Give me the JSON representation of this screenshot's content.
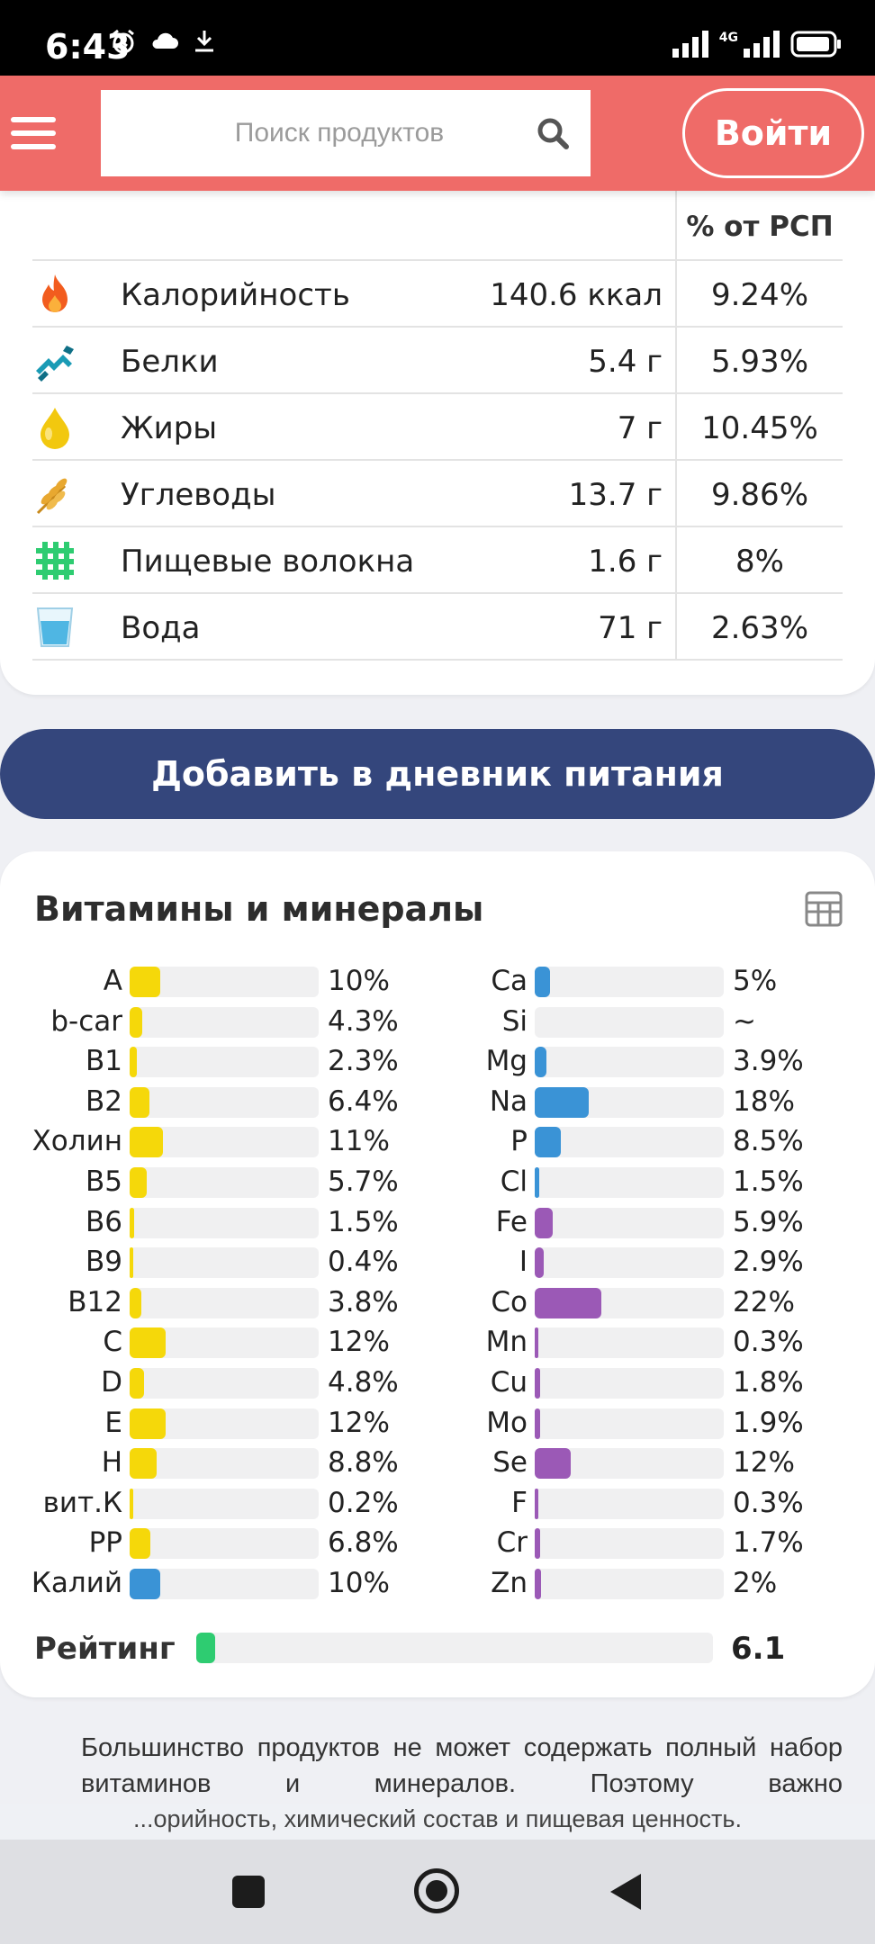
{
  "status_bar": {
    "time": "6:43",
    "network": "4G"
  },
  "header": {
    "search_placeholder": "Поиск продуктов",
    "login_label": "Войти",
    "accent_color": "#ef6b68"
  },
  "nutrition": {
    "pct_header": "% от РСП",
    "rows": [
      {
        "icon": "fire-icon",
        "name": "Калорийность",
        "amount": "140.6 ккал",
        "pct": "9.24%"
      },
      {
        "icon": "protein-icon",
        "name": "Белки",
        "amount": "5.4 г",
        "pct": "5.93%"
      },
      {
        "icon": "oil-drop-icon",
        "name": "Жиры",
        "amount": "7 г",
        "pct": "10.45%"
      },
      {
        "icon": "wheat-icon",
        "name": "Углеводы",
        "amount": "13.7 г",
        "pct": "9.86%"
      },
      {
        "icon": "fiber-icon",
        "name": "Пищевые волокна",
        "amount": "1.6 г",
        "pct": "8%"
      },
      {
        "icon": "water-glass-icon",
        "name": "Вода",
        "amount": "71 г",
        "pct": "2.63%"
      }
    ]
  },
  "diary_button": {
    "label": "Добавить в дневник питания",
    "color": "#34467c"
  },
  "vitamins": {
    "title": "Витамины и минералы",
    "colors": {
      "yellow": "#f5d80a",
      "blue": "#3a93d6",
      "purple": "#9b59b6",
      "green": "#2ecc71"
    },
    "left": [
      {
        "label": "A",
        "value": "10%",
        "level": 10,
        "color": "yellow"
      },
      {
        "label": "b-car",
        "value": "4.3%",
        "level": 4.3,
        "color": "yellow"
      },
      {
        "label": "B1",
        "value": "2.3%",
        "level": 2.3,
        "color": "yellow"
      },
      {
        "label": "B2",
        "value": "6.4%",
        "level": 6.4,
        "color": "yellow"
      },
      {
        "label": "Холин",
        "value": "11%",
        "level": 11,
        "color": "yellow"
      },
      {
        "label": "B5",
        "value": "5.7%",
        "level": 5.7,
        "color": "yellow"
      },
      {
        "label": "B6",
        "value": "1.5%",
        "level": 1.5,
        "color": "yellow"
      },
      {
        "label": "B9",
        "value": "0.4%",
        "level": 0.4,
        "color": "yellow"
      },
      {
        "label": "B12",
        "value": "3.8%",
        "level": 3.8,
        "color": "yellow"
      },
      {
        "label": "C",
        "value": "12%",
        "level": 12,
        "color": "yellow"
      },
      {
        "label": "D",
        "value": "4.8%",
        "level": 4.8,
        "color": "yellow"
      },
      {
        "label": "E",
        "value": "12%",
        "level": 12,
        "color": "yellow"
      },
      {
        "label": "H",
        "value": "8.8%",
        "level": 8.8,
        "color": "yellow"
      },
      {
        "label": "вит.К",
        "value": "0.2%",
        "level": 0.2,
        "color": "yellow"
      },
      {
        "label": "PP",
        "value": "6.8%",
        "level": 6.8,
        "color": "yellow"
      },
      {
        "label": "Калий",
        "value": "10%",
        "level": 10,
        "color": "blue"
      }
    ],
    "right": [
      {
        "label": "Ca",
        "value": "5%",
        "level": 5,
        "color": "blue"
      },
      {
        "label": "Si",
        "value": "~",
        "level": 0,
        "color": "blue"
      },
      {
        "label": "Mg",
        "value": "3.9%",
        "level": 3.9,
        "color": "blue"
      },
      {
        "label": "Na",
        "value": "18%",
        "level": 18,
        "color": "blue"
      },
      {
        "label": "P",
        "value": "8.5%",
        "level": 8.5,
        "color": "blue"
      },
      {
        "label": "Cl",
        "value": "1.5%",
        "level": 1.5,
        "color": "blue"
      },
      {
        "label": "Fe",
        "value": "5.9%",
        "level": 5.9,
        "color": "purple"
      },
      {
        "label": "I",
        "value": "2.9%",
        "level": 2.9,
        "color": "purple"
      },
      {
        "label": "Co",
        "value": "22%",
        "level": 22,
        "color": "purple"
      },
      {
        "label": "Mn",
        "value": "0.3%",
        "level": 0.3,
        "color": "purple"
      },
      {
        "label": "Cu",
        "value": "1.8%",
        "level": 1.8,
        "color": "purple"
      },
      {
        "label": "Mo",
        "value": "1.9%",
        "level": 1.9,
        "color": "purple"
      },
      {
        "label": "Se",
        "value": "12%",
        "level": 12,
        "color": "purple"
      },
      {
        "label": "F",
        "value": "0.3%",
        "level": 0.3,
        "color": "purple"
      },
      {
        "label": "Cr",
        "value": "1.7%",
        "level": 1.7,
        "color": "purple"
      },
      {
        "label": "Zn",
        "value": "2%",
        "level": 2,
        "color": "purple"
      }
    ],
    "rating_label": "Рейтинг",
    "rating_value": "6.1",
    "rating_level": 6.1
  },
  "note": {
    "text": "Большинство продуктов не может содержать полный набор витаминов и минералов. Поэтому важно",
    "seo_line": "...орийность, химический состав и пищевая ценность."
  }
}
